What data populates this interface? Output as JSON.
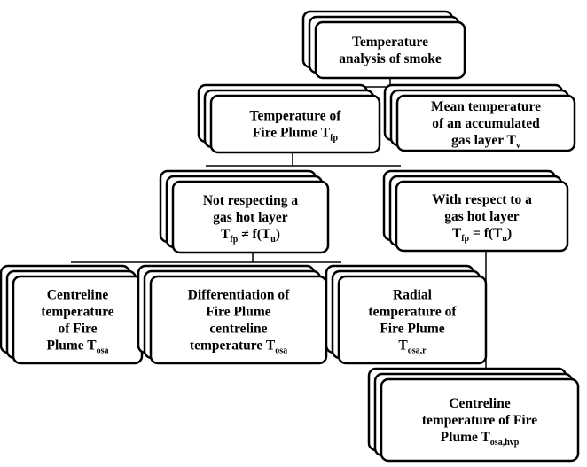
{
  "nodes": [
    {
      "lines": [
        [
          "Temperature"
        ],
        [
          "analysis of smoke"
        ]
      ]
    },
    {
      "lines": [
        [
          "Temperature of"
        ],
        [
          "Fire Plume T",
          {
            "sub": "fp"
          }
        ]
      ]
    },
    {
      "lines": [
        [
          "Mean temperature"
        ],
        [
          "of an accumulated"
        ],
        [
          "gas layer T",
          {
            "sub": "v"
          }
        ]
      ]
    },
    {
      "lines": [
        [
          "Not respecting a"
        ],
        [
          "gas hot layer"
        ],
        [
          "T",
          {
            "sub": "fp"
          },
          " ≠ f(T",
          {
            "sub": "u"
          },
          ")"
        ]
      ]
    },
    {
      "lines": [
        [
          "With respect to a"
        ],
        [
          "gas hot layer"
        ],
        [
          "T",
          {
            "sub": "fp"
          },
          " = f(T",
          {
            "sub": "u"
          },
          ")"
        ]
      ]
    },
    {
      "lines": [
        [
          "Centreline"
        ],
        [
          "temperature"
        ],
        [
          "of Fire"
        ],
        [
          "Plume T",
          {
            "sub": "osa"
          }
        ]
      ]
    },
    {
      "lines": [
        [
          "Differentiation of"
        ],
        [
          "Fire Plume"
        ],
        [
          "centreline"
        ],
        [
          "temperature T",
          {
            "sub": "osa"
          }
        ]
      ]
    },
    {
      "lines": [
        [
          "Radial"
        ],
        [
          "temperature of"
        ],
        [
          "Fire Plume"
        ],
        [
          "T",
          {
            "sub": "osa,r"
          }
        ]
      ]
    },
    {
      "lines": [
        [
          "Centreline"
        ],
        [
          "temperature of Fire"
        ],
        [
          "Plume T",
          {
            "sub": "osa,hvp"
          }
        ]
      ]
    }
  ]
}
